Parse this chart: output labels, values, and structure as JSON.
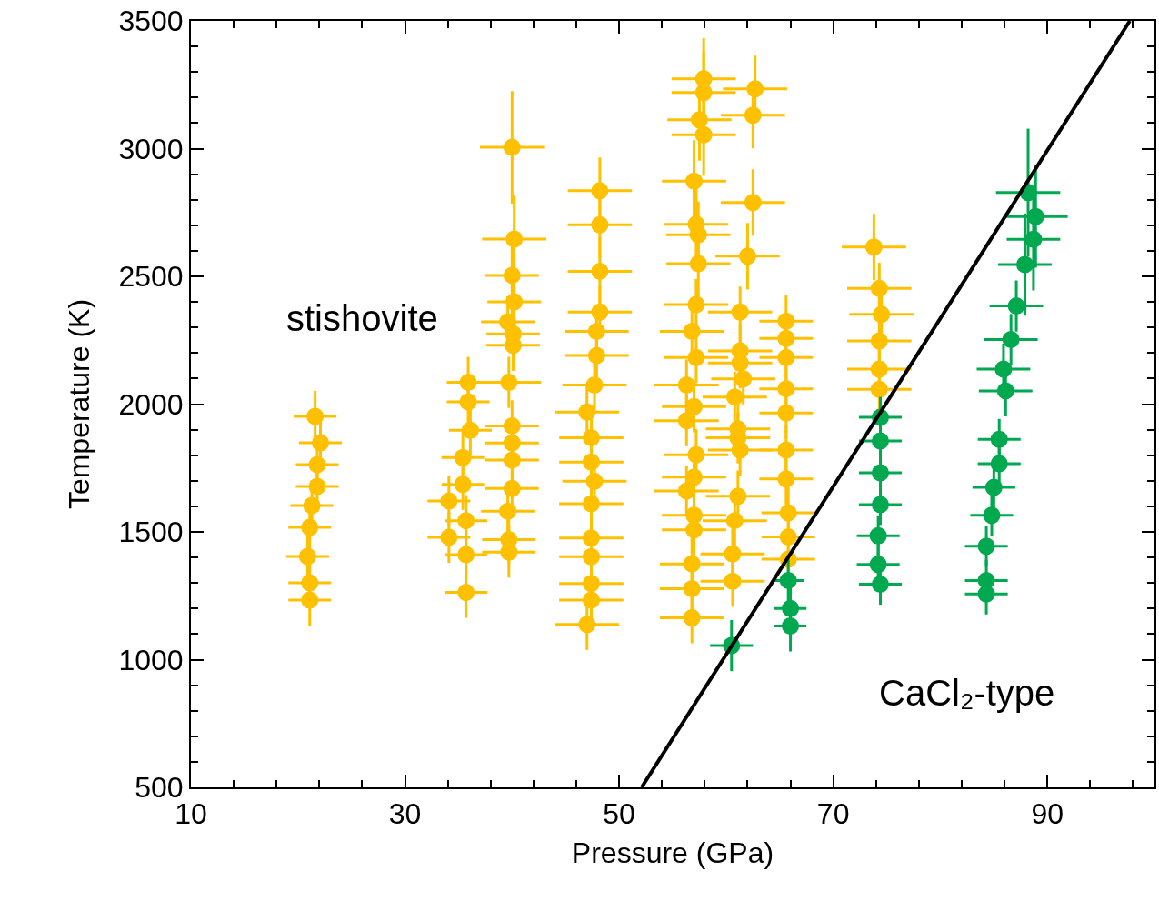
{
  "chart_data": {
    "type": "scatter",
    "xlabel": "Pressure (GPa)",
    "ylabel": "Temperature (K)",
    "xlim": [
      10,
      100
    ],
    "ylim": [
      500,
      3500
    ],
    "xticks": [
      10,
      {
        "value": 14,
        "label": null
      },
      {
        "value": 18,
        "label": null
      },
      {
        "value": 22,
        "label": null
      },
      {
        "value": 26,
        "label": null
      },
      30,
      {
        "value": 34,
        "label": null
      },
      {
        "value": 38,
        "label": null
      },
      {
        "value": 42,
        "label": null
      },
      {
        "value": 46,
        "label": null
      },
      50,
      {
        "value": 54,
        "label": null
      },
      {
        "value": 58,
        "label": null
      },
      {
        "value": 62,
        "label": null
      },
      {
        "value": 66,
        "label": null
      },
      70,
      {
        "value": 74,
        "label": null
      },
      {
        "value": 78,
        "label": null
      },
      {
        "value": 82,
        "label": null
      },
      {
        "value": 86,
        "label": null
      },
      90,
      {
        "value": 94,
        "label": null
      },
      {
        "value": 98,
        "label": null
      }
    ],
    "yticks": [
      500,
      {
        "value": 600,
        "label": null
      },
      {
        "value": 700,
        "label": null
      },
      {
        "value": 800,
        "label": null
      },
      {
        "value": 900,
        "label": null
      },
      1000,
      {
        "value": 1100,
        "label": null
      },
      {
        "value": 1200,
        "label": null
      },
      {
        "value": 1300,
        "label": null
      },
      {
        "value": 1400,
        "label": null
      },
      1500,
      {
        "value": 1600,
        "label": null
      },
      {
        "value": 1700,
        "label": null
      },
      {
        "value": 1800,
        "label": null
      },
      {
        "value": 1900,
        "label": null
      },
      2000,
      {
        "value": 2100,
        "label": null
      },
      {
        "value": 2200,
        "label": null
      },
      {
        "value": 2300,
        "label": null
      },
      {
        "value": 2400,
        "label": null
      },
      2500,
      {
        "value": 2600,
        "label": null
      },
      {
        "value": 2700,
        "label": null
      },
      {
        "value": 2800,
        "label": null
      },
      {
        "value": 2900,
        "label": null
      },
      3000,
      {
        "value": 3100,
        "label": null
      },
      {
        "value": 3200,
        "label": null
      },
      {
        "value": 3300,
        "label": null
      },
      {
        "value": 3400,
        "label": null
      },
      3500
    ],
    "grid": false,
    "marker": "circle",
    "annotations": [
      "stishovite",
      "CaCl₂-type"
    ],
    "series": [
      {
        "color": "#ffc000",
        "x": [
          21.6,
          22.1,
          21.8,
          21.8,
          21.3,
          21.1,
          20.9,
          21.1,
          21.1,
          35.9,
          35.9,
          36.1,
          35.4,
          35.4,
          35.7,
          35.7,
          35.7,
          34.1,
          34.1,
          40.0,
          40.2,
          40.0,
          40.2,
          39.6,
          40.1,
          40.1,
          40.0,
          40.0,
          40.0,
          40.0,
          39.6,
          39.7,
          39.7,
          39.7,
          48.2,
          48.2,
          48.2,
          48.2,
          47.9,
          47.9,
          47.7,
          47.0,
          47.4,
          47.4,
          47.7,
          47.4,
          47.4,
          47.4,
          47.4,
          47.4,
          47.0,
          57.9,
          57.9,
          57.5,
          57.9,
          57.0,
          57.2,
          57.4,
          57.4,
          57.2,
          56.8,
          57.2,
          56.3,
          57.0,
          56.3,
          57.2,
          57.0,
          56.3,
          57.0,
          57.0,
          56.8,
          56.8,
          56.8,
          62.7,
          62.5,
          62.5,
          62.0,
          61.3,
          61.3,
          61.3,
          61.6,
          60.8,
          61.1,
          61.1,
          61.3,
          61.1,
          60.8,
          60.6,
          60.6,
          65.6,
          65.6,
          65.6,
          65.6,
          65.6,
          65.6,
          65.6,
          65.8,
          65.8,
          65.8,
          73.8,
          74.3,
          74.5,
          74.3,
          74.3,
          74.3
        ],
        "values": [
          1952,
          1849,
          1763,
          1678,
          1603,
          1518,
          1404,
          1301,
          1233,
          2085,
          2009,
          1898,
          1791,
          1686,
          1544,
          1411,
          1263,
          1621,
          1479,
          3005,
          2646,
          2504,
          2400,
          2322,
          2275,
          2230,
          1915,
          1848,
          1781,
          1670,
          1581,
          1470,
          1421,
          2085,
          2835,
          2702,
          2520,
          2360,
          2285,
          2190,
          2075,
          1969,
          1868,
          1773,
          1698,
          1610,
          1476,
          1403,
          1298,
          1233,
          1138,
          3273,
          3220,
          3113,
          3054,
          2873,
          2704,
          2663,
          2550,
          2390,
          2285,
          2182,
          2075,
          1990,
          1935,
          1802,
          1714,
          1660,
          1565,
          1508,
          1375,
          1278,
          1164,
          3234,
          3131,
          2789,
          2579,
          2360,
          2208,
          2161,
          2099,
          2028,
          1903,
          1868,
          1820,
          1640,
          1544,
          1414,
          1307,
          2325,
          2257,
          2182,
          2060,
          1965,
          1820,
          1707,
          1575,
          1480,
          1393,
          2615,
          2453,
          2351,
          2247,
          2137,
          2058
        ],
        "errors": [
          100,
          100,
          100,
          100,
          100,
          100,
          100,
          100,
          100,
          100,
          100,
          100,
          100,
          100,
          100,
          100,
          100,
          100,
          100,
          220,
          170,
          170,
          100,
          100,
          100,
          100,
          100,
          100,
          100,
          100,
          100,
          100,
          100,
          100,
          130,
          130,
          130,
          100,
          100,
          100,
          100,
          100,
          100,
          100,
          100,
          100,
          100,
          100,
          100,
          100,
          100,
          160,
          160,
          160,
          160,
          160,
          160,
          130,
          130,
          100,
          100,
          100,
          100,
          100,
          100,
          100,
          100,
          100,
          100,
          100,
          100,
          100,
          100,
          130,
          130,
          130,
          130,
          100,
          100,
          100,
          100,
          100,
          100,
          100,
          100,
          100,
          100,
          100,
          100,
          100,
          100,
          100,
          100,
          100,
          100,
          100,
          100,
          100,
          100,
          130,
          100,
          100,
          100,
          100,
          100
        ],
        "xerrors": [
          2,
          2,
          2,
          2,
          2,
          2,
          2,
          2,
          2,
          2,
          2,
          2,
          2,
          2,
          2,
          2,
          2,
          2,
          2,
          3,
          3,
          2.5,
          2.5,
          2.5,
          2.5,
          2.5,
          2.5,
          2.5,
          2.5,
          2.5,
          2.5,
          2.5,
          2.5,
          3,
          3,
          3,
          3,
          3,
          3,
          3,
          3,
          3,
          3,
          3,
          3,
          3,
          3,
          3,
          3,
          3,
          3,
          3,
          3,
          3,
          3,
          3,
          3,
          3,
          3,
          3,
          3,
          3,
          3,
          3,
          3,
          3,
          3,
          3,
          3,
          3,
          3,
          3,
          3,
          3,
          3,
          3,
          3,
          3,
          3,
          3,
          3,
          3,
          3,
          3,
          3,
          3,
          3,
          3,
          3,
          2.5,
          2.5,
          2.5,
          2.5,
          2.5,
          2.5,
          2.5,
          2.5,
          2.5,
          2.5,
          3,
          3,
          3,
          3,
          3,
          3
        ]
      },
      {
        "color": "#00a84f",
        "x": [
          60.5,
          65.8,
          66.0,
          66.0,
          74.4,
          74.4,
          74.4,
          74.4,
          74.2,
          74.2,
          74.4,
          88.2,
          88.9,
          88.7,
          87.9,
          87.1,
          86.6,
          85.9,
          86.1,
          85.5,
          85.5,
          85.0,
          84.8,
          84.3,
          84.3,
          84.3
        ],
        "values": [
          1055,
          1310,
          1200,
          1132,
          1948,
          1856,
          1731,
          1607,
          1485,
          1373,
          1295,
          2828,
          2734,
          2645,
          2546,
          2384,
          2253,
          2137,
          2052,
          1862,
          1767,
          1674,
          1565,
          1444,
          1310,
          1257
        ],
        "errors": [
          100,
          100,
          100,
          100,
          80,
          80,
          80,
          80,
          80,
          80,
          80,
          250,
          200,
          200,
          200,
          100,
          100,
          100,
          100,
          80,
          80,
          80,
          80,
          80,
          80,
          80
        ],
        "xerrors": [
          2,
          1.5,
          1.5,
          1.5,
          2,
          2,
          2,
          2,
          2,
          2,
          2,
          3,
          3,
          2.5,
          2.5,
          2.5,
          2.5,
          2.5,
          2.5,
          2,
          2,
          2,
          2,
          2,
          2,
          2
        ]
      },
      {
        "type": "line",
        "color": "#000000",
        "line_style": "solid",
        "marker": "none",
        "x": [
          52.1,
          97.7
        ],
        "values": [
          500,
          3500
        ]
      }
    ]
  }
}
